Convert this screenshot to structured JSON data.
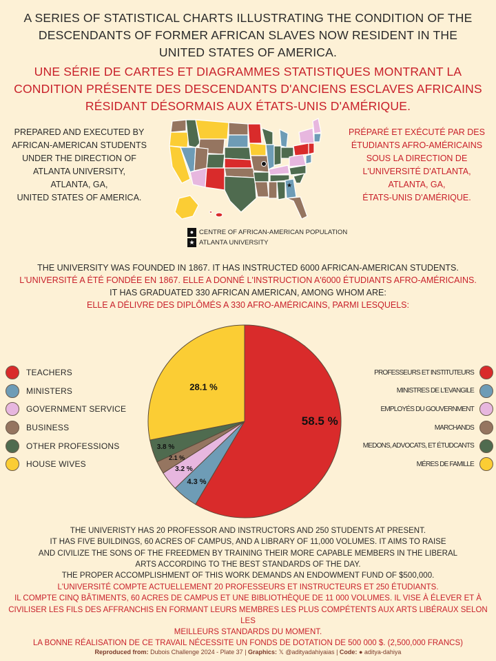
{
  "title": {
    "en": [
      "A SERIES OF STATISTICAL CHARTS ILLUSTRATING THE CONDITION OF THE",
      "DESCENDANTS OF FORMER AFRICAN SLAVES NOW RESIDENT IN THE",
      "UNITED STATES OF AMERICA."
    ],
    "fr": [
      "UNE SÉRIE DE CARTES ET DIAGRAMMES STATISTIQUES MONTRANT LA",
      "CONDITION PRÉSENTE DES DESCENDANTS D'ANCIENS ESCLAVES AFRICAINS",
      "RÉSIDANT DÉSORMAIS AUX ÉTATS-UNIS D'AMÉRIQUE."
    ]
  },
  "prepared": {
    "en": [
      "PREPARED AND EXECUTED BY",
      "AFRICAN-AMERICAN STUDENTS",
      "UNDER THE DIRECTION OF",
      "ATLANTA UNIVERSITY,",
      "ATLANTA, GA,",
      "UNITED STATES OF AMERICA."
    ],
    "fr": [
      "PRÉPARÉ ET EXÉCUTÉ PAR DES",
      "ÉTUDIANTS AFRO-AMÉRICAINS",
      "SOUS LA DIRECTION DE",
      "L'UNIVERSITÉ D'ATLANTA,",
      "ATLANTA, GA,",
      "ÉTATS-UNIS D'AMÉRIQUE."
    ]
  },
  "map_legend": {
    "centre": "CENTRE OF AFRICAN-AMERICAN POPULATION",
    "university": "ATLANTA UNIVERSITY"
  },
  "university": [
    {
      "lang": "en",
      "text": "THE UNIVERSITY WAS FOUNDED IN 1867. IT HAS INSTRUCTED 6000 AFRICAN-AMERICAN STUDENTS."
    },
    {
      "lang": "fr",
      "text": "L'UNIVERSITÉ A ÉTÉ FONDÉE EN 1867. ELLE A DONNÉ L'INSTRUCTION A'6000 ÉTUDIANTS AFRO-AMÉRICAINS."
    },
    {
      "lang": "en",
      "text": "IT HAS GRADUATED 330 AFRICAN AMERICAN, AMONG WHOM ARE:"
    },
    {
      "lang": "fr",
      "text": "ELLE A DÉLIVRE DES DIPLÔMÉS A 330 AFRO-AMÉRICAINS, PARMI LESQUELS:"
    }
  ],
  "colors": {
    "background": "#fdf1d6",
    "english_text": "#2a2a2a",
    "french_text": "#c8202a",
    "slice_outline": "#5a4a3a"
  },
  "chart_data": {
    "type": "pie",
    "start_angle_deg": 90,
    "direction": "clockwise",
    "slices": [
      {
        "label": "TEACHERS",
        "label_fr": "PROFESSEURS ET INSTITUTEURS",
        "value": 58.5,
        "value_label": "58.5 %",
        "color": "#d92b2b"
      },
      {
        "label": "MINISTERS",
        "label_fr": "MINISTRES DE L'EVANGILE",
        "value": 4.3,
        "value_label": "4.3 %",
        "color": "#6e9cb6"
      },
      {
        "label": "GOVERNMENT SERVICE",
        "label_fr": "EMPLOYÉS DU GOUVERNMENT",
        "value": 3.2,
        "value_label": "3.2 %",
        "color": "#e7b7df"
      },
      {
        "label": "BUSINESS",
        "label_fr": "MARCHANDS",
        "value": 2.1,
        "value_label": "2.1 %",
        "color": "#957560"
      },
      {
        "label": "OTHER PROFESSIONS",
        "label_fr": "MEDONS, ADVOCATS, ET ÉTUDCANTS",
        "value": 3.8,
        "value_label": "3.8 %",
        "color": "#4f6b4f"
      },
      {
        "label": "HOUSE WIVES",
        "label_fr": "MÉRES DE FAMILLE",
        "value": 28.1,
        "value_label": "28.1 %",
        "color": "#fbcd34"
      }
    ]
  },
  "footer": {
    "en": [
      "THE UNIVERISTY HAS 20 PROFESSOR AND INSTRUCTORS AND 250 STUDENTS AT PRESENT.",
      "IT HAS FIVE BUILDINGS, 60 ACRES OF CAMPUS, AND A LIBRARY OF 11,000 VOLUMES. IT AIMS TO RAISE",
      "AND CIVILIZE THE SONS OF THE FREEDMEN BY TRAINING THEIR MORE CAPABLE MEMBERS IN THE LIBERAL",
      "ARTS ACCORDING TO THE BEST STANDARDS OF THE DAY.",
      "THE PROPER ACCOMPLISHMENT OF THIS WORK DEMANDS AN ENDOWMENT FUND OF $500,000."
    ],
    "fr": [
      "L'UNIVERSITÉ COMPTE ACTUELLEMENT 20 PROFESSEURS ET INSTRUCTEURS ET 250 ÉTUDIANTS.",
      "IL COMPTE CINQ BÂTIMENTS, 60 ACRES DE CAMPUS ET UNE BIBLIOTHÈQUE DE 11 000 VOLUMES. IL VISE À ÉLEVER ET À",
      "CIVILISER LES FILS DES AFFRANCHIS EN FORMANT LEURS MEMBRES LES PLUS COMPÉTENTS AUX ARTS LIBÉRAUX SELON LES",
      "MEILLEURS STANDARDS DU MOMENT.",
      "LA BONNE RÉALISATION DE CE TRAVAIL NÉCESSITE UN FONDS DE DOTATION DE 500 000 $. (2,500,000 FRANCS)"
    ]
  },
  "credit": {
    "reproduced_label": "Reproduced from:",
    "reproduced_value": "Dubois Challenge 2024 - Plate 37",
    "graphics_label": "Graphics:",
    "graphics_value": "@adityadahiyaias",
    "code_label": "Code:",
    "code_value": "aditya-dahiya",
    "x_icon": "𝕏",
    "github_icon": "●",
    "separator": "|"
  }
}
